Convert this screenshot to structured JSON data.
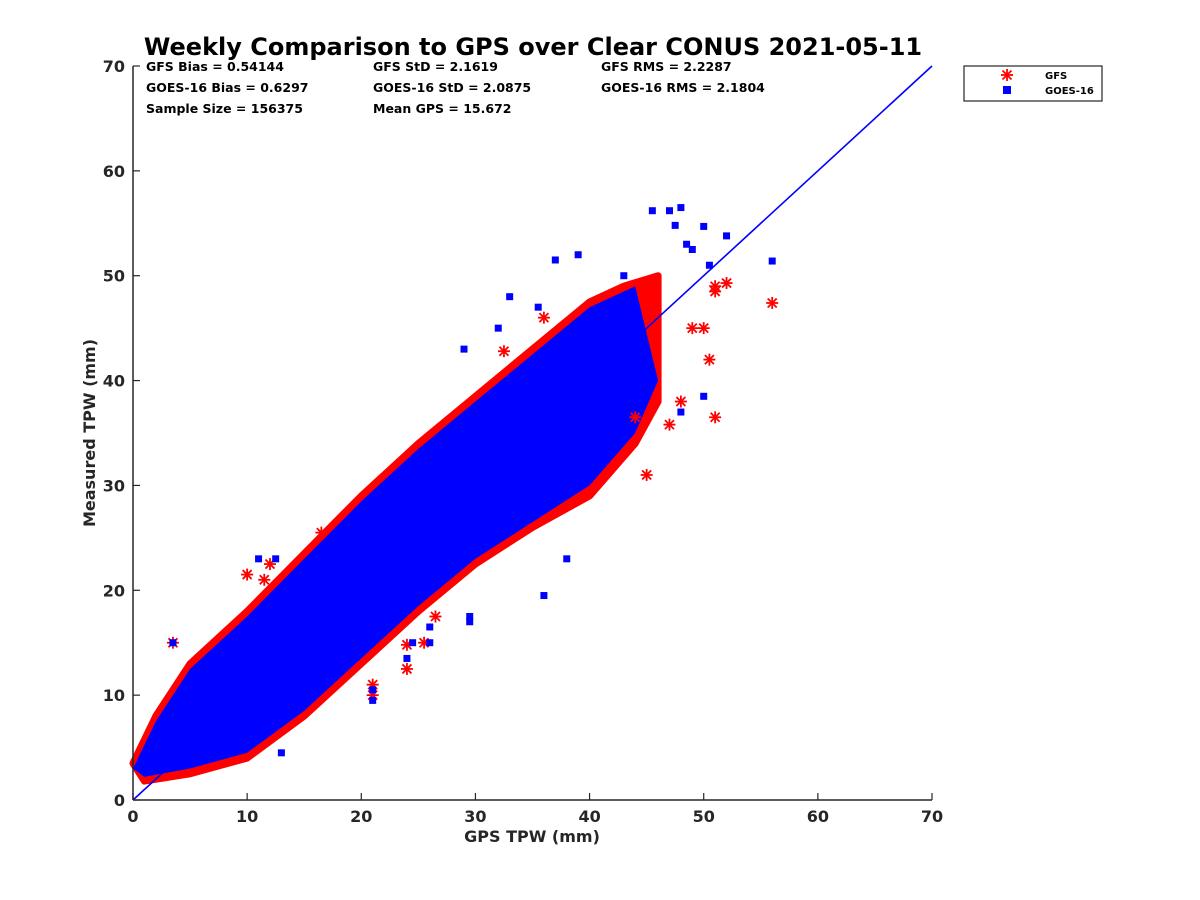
{
  "chart_data": {
    "type": "scatter",
    "title": "Weekly Comparison to GPS over Clear CONUS 2021-05-11",
    "xlabel": "GPS TPW (mm)",
    "ylabel": "Measured TPW (mm)",
    "xlim": [
      0,
      70
    ],
    "ylim": [
      0,
      70
    ],
    "xticks": [
      "0",
      "10",
      "20",
      "30",
      "40",
      "50",
      "60",
      "70"
    ],
    "yticks": [
      "0",
      "10",
      "20",
      "30",
      "40",
      "50",
      "60",
      "70"
    ],
    "grid": false,
    "legend_position": "outside-top-right",
    "reference_line": {
      "name": "1:1 line",
      "from": [
        0,
        0
      ],
      "to": [
        70,
        70
      ],
      "color": "#0000ff"
    },
    "stats": [
      "GFS Bias = 0.54144",
      "GFS StD = 2.1619",
      "GFS RMS = 2.2287",
      "GOES-16 Bias = 0.6297",
      "GOES-16 StD = 2.0875",
      "GOES-16 RMS = 2.1804",
      "Sample Size = 156375",
      "Mean GPS = 15.672"
    ],
    "series": [
      {
        "name": "GFS",
        "marker": "asterisk",
        "color": "#ff0000",
        "cloud": {
          "upper_edge": [
            [
              0,
              3.5
            ],
            [
              2,
              8
            ],
            [
              5,
              13
            ],
            [
              10,
              18
            ],
            [
              15,
              23.5
            ],
            [
              20,
              29
            ],
            [
              25,
              34
            ],
            [
              30,
              38.5
            ],
            [
              35,
              43
            ],
            [
              40,
              47.5
            ],
            [
              43,
              49
            ],
            [
              46,
              50
            ]
          ],
          "lower_edge": [
            [
              46,
              38
            ],
            [
              44,
              34
            ],
            [
              40,
              29
            ],
            [
              35,
              26
            ],
            [
              30,
              22.5
            ],
            [
              25,
              18
            ],
            [
              20,
              13
            ],
            [
              15,
              8
            ],
            [
              10,
              4
            ],
            [
              5,
              2.5
            ],
            [
              1,
              1.8
            ]
          ]
        },
        "outliers": [
          [
            3.5,
            15
          ],
          [
            10,
            21.5
          ],
          [
            11.5,
            21
          ],
          [
            12,
            22.5
          ],
          [
            16.5,
            25.5
          ],
          [
            21,
            11
          ],
          [
            21,
            10
          ],
          [
            24,
            12.5
          ],
          [
            24,
            14.8
          ],
          [
            25.5,
            15
          ],
          [
            26.5,
            17.5
          ],
          [
            32.5,
            42.8
          ],
          [
            36,
            46
          ],
          [
            44,
            36.5
          ],
          [
            45,
            31
          ],
          [
            47,
            35.8
          ],
          [
            48,
            38
          ],
          [
            49,
            45
          ],
          [
            50,
            45
          ],
          [
            50.5,
            42
          ],
          [
            51,
            36.5
          ],
          [
            51,
            48.5
          ],
          [
            51,
            49
          ],
          [
            52,
            49.3
          ],
          [
            56,
            47.4
          ]
        ]
      },
      {
        "name": "GOES-16",
        "marker": "square",
        "color": "#0000ff",
        "cloud": {
          "upper_edge": [
            [
              0,
              3
            ],
            [
              2,
              7.5
            ],
            [
              5,
              12.5
            ],
            [
              10,
              17.5
            ],
            [
              15,
              23
            ],
            [
              20,
              28.5
            ],
            [
              25,
              33.5
            ],
            [
              30,
              38
            ],
            [
              35,
              42.5
            ],
            [
              40,
              47
            ],
            [
              44,
              49
            ]
          ],
          "lower_edge": [
            [
              46,
              40
            ],
            [
              44,
              35
            ],
            [
              40,
              30
            ],
            [
              35,
              26.5
            ],
            [
              30,
              23
            ],
            [
              25,
              18.5
            ],
            [
              20,
              13.5
            ],
            [
              15,
              8.5
            ],
            [
              10,
              4.5
            ],
            [
              5,
              3
            ],
            [
              1,
              2.2
            ]
          ]
        },
        "outliers": [
          [
            3.5,
            15
          ],
          [
            11,
            23
          ],
          [
            12.5,
            23
          ],
          [
            13,
            4.5
          ],
          [
            21,
            9.5
          ],
          [
            21,
            10.5
          ],
          [
            24,
            13.5
          ],
          [
            24.5,
            15
          ],
          [
            26,
            15
          ],
          [
            26,
            16.5
          ],
          [
            29,
            43
          ],
          [
            29.5,
            17
          ],
          [
            29.5,
            17.5
          ],
          [
            32,
            45
          ],
          [
            33,
            48
          ],
          [
            35.5,
            47
          ],
          [
            36,
            19.5
          ],
          [
            37,
            51.5
          ],
          [
            38,
            23
          ],
          [
            39,
            52
          ],
          [
            43,
            50
          ],
          [
            45.5,
            56.2
          ],
          [
            47,
            56.2
          ],
          [
            47.5,
            54.8
          ],
          [
            48,
            56.5
          ],
          [
            48.5,
            53
          ],
          [
            49,
            52.5
          ],
          [
            50,
            54.7
          ],
          [
            50.5,
            51
          ],
          [
            52,
            53.8
          ],
          [
            56,
            51.4
          ],
          [
            45,
            38.5
          ],
          [
            48,
            37
          ],
          [
            50,
            38.5
          ]
        ]
      }
    ]
  }
}
